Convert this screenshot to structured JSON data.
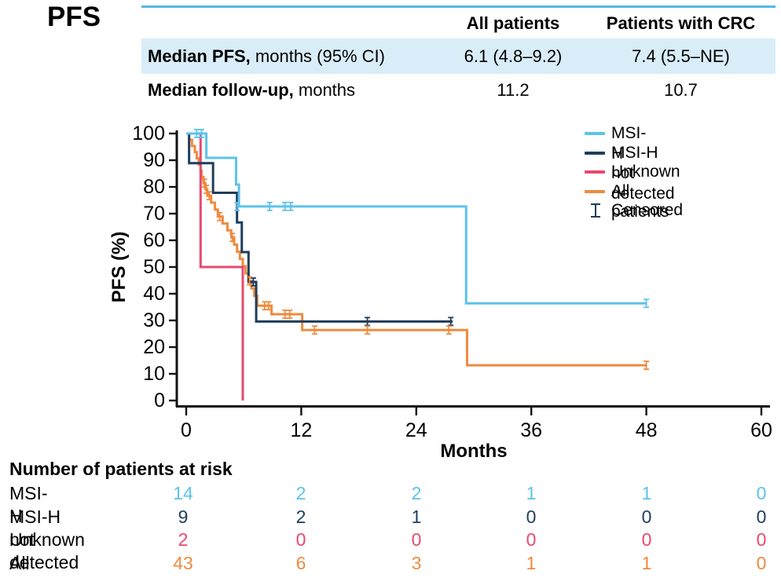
{
  "title": "PFS",
  "colors": {
    "msi_h": "#5BC3EB",
    "msi_h_not_detected": "#1F3D5C",
    "unknown": "#E64A6E",
    "all_patients": "#EE8B3F",
    "table_rule": "#55B7E3",
    "row_highlight": "#D9EDF9",
    "axis": "#111111"
  },
  "summary_table": {
    "columns": [
      "All patients",
      "Patients with CRC"
    ],
    "rows": [
      {
        "label_bold": "Median PFS,",
        "label_rest": " months (95% CI)",
        "all_patients": "6.1 (4.8–9.2)",
        "crc": "7.4 (5.5–NE)"
      },
      {
        "label_bold": "Median follow-up,",
        "label_rest": " months",
        "all_patients": "11.2",
        "crc": "10.7"
      }
    ]
  },
  "chart_data": {
    "type": "line",
    "subtype": "kaplan-meier",
    "title": "",
    "xlabel": "Months",
    "ylabel": "PFS (%)",
    "xlim": [
      0,
      60
    ],
    "ylim": [
      0,
      100
    ],
    "xticks": [
      0,
      12,
      24,
      36,
      48,
      60
    ],
    "yticks": [
      0,
      10,
      20,
      30,
      40,
      50,
      60,
      70,
      80,
      90,
      100
    ],
    "grid": false,
    "legend_position": "top-right",
    "legend_censored_label": "Censored",
    "series": [
      {
        "name": "MSI-H",
        "color": "#5BC3EB",
        "steps": [
          [
            0,
            100
          ],
          [
            2.1,
            100
          ],
          [
            2.1,
            90.9
          ],
          [
            5.2,
            90.9
          ],
          [
            5.2,
            80.9
          ],
          [
            5.5,
            80.9
          ],
          [
            5.5,
            72.7
          ],
          [
            29.2,
            72.7
          ],
          [
            29.2,
            36.4
          ],
          [
            48,
            36.4
          ]
        ],
        "censors": [
          [
            1.1,
            100
          ],
          [
            1.6,
            100
          ],
          [
            5.3,
            72.7
          ],
          [
            8.7,
            72.7
          ],
          [
            10.3,
            72.7
          ],
          [
            10.9,
            72.7
          ],
          [
            48,
            36.4
          ]
        ]
      },
      {
        "name": "MSI-H not detected",
        "color": "#1F3D5C",
        "steps": [
          [
            0,
            100
          ],
          [
            0.3,
            100
          ],
          [
            0.3,
            88.9
          ],
          [
            2.8,
            88.9
          ],
          [
            2.8,
            77.8
          ],
          [
            5.3,
            77.8
          ],
          [
            5.3,
            66.7
          ],
          [
            5.8,
            66.7
          ],
          [
            5.8,
            55.6
          ],
          [
            6.5,
            55.6
          ],
          [
            6.5,
            44.4
          ],
          [
            7.3,
            44.4
          ],
          [
            7.3,
            29.6
          ],
          [
            27.8,
            29.6
          ]
        ],
        "censors": [
          [
            7.0,
            44.4
          ],
          [
            18.9,
            29.6
          ],
          [
            27.6,
            29.6
          ]
        ]
      },
      {
        "name": "Unknown",
        "color": "#E64A6E",
        "steps": [
          [
            0,
            100
          ],
          [
            1.5,
            100
          ],
          [
            1.5,
            50
          ],
          [
            5.9,
            50
          ],
          [
            5.9,
            0
          ]
        ],
        "censors": []
      },
      {
        "name": "All patients",
        "color": "#EE8B3F",
        "steps": [
          [
            0,
            100
          ],
          [
            0.3,
            100
          ],
          [
            0.3,
            97.7
          ],
          [
            0.6,
            97.7
          ],
          [
            0.6,
            95.3
          ],
          [
            0.9,
            95.3
          ],
          [
            0.9,
            93
          ],
          [
            1.1,
            93
          ],
          [
            1.1,
            90.7
          ],
          [
            1.3,
            90.7
          ],
          [
            1.3,
            88.4
          ],
          [
            1.5,
            88.4
          ],
          [
            1.5,
            86
          ],
          [
            1.6,
            86
          ],
          [
            1.6,
            83.7
          ],
          [
            1.8,
            83.7
          ],
          [
            1.8,
            81.4
          ],
          [
            2,
            81.4
          ],
          [
            2,
            79.1
          ],
          [
            2.2,
            79.1
          ],
          [
            2.2,
            76.7
          ],
          [
            2.6,
            76.7
          ],
          [
            2.6,
            74.1
          ],
          [
            3,
            74.1
          ],
          [
            3,
            71.5
          ],
          [
            3.3,
            71.5
          ],
          [
            3.3,
            68.9
          ],
          [
            3.8,
            68.9
          ],
          [
            3.8,
            66.3
          ],
          [
            4.3,
            66.3
          ],
          [
            4.3,
            63.7
          ],
          [
            4.7,
            63.7
          ],
          [
            4.7,
            61.1
          ],
          [
            5,
            61.1
          ],
          [
            5,
            58.4
          ],
          [
            5.3,
            58.4
          ],
          [
            5.3,
            55.7
          ],
          [
            5.6,
            55.7
          ],
          [
            5.6,
            53
          ],
          [
            5.9,
            53
          ],
          [
            5.9,
            50.3
          ],
          [
            6.2,
            50.3
          ],
          [
            6.2,
            47.6
          ],
          [
            6.5,
            47.6
          ],
          [
            6.5,
            44.8
          ],
          [
            6.8,
            44.8
          ],
          [
            6.8,
            42
          ],
          [
            7.1,
            42
          ],
          [
            7.1,
            39.2
          ],
          [
            7.4,
            39.2
          ],
          [
            7.4,
            35.5
          ],
          [
            8.9,
            35.5
          ],
          [
            8.9,
            32.3
          ],
          [
            12.1,
            32.3
          ],
          [
            12.1,
            26.4
          ],
          [
            29.3,
            26.4
          ],
          [
            29.3,
            13.2
          ],
          [
            48,
            13.2
          ]
        ],
        "censors": [
          [
            1.9,
            81.4
          ],
          [
            2.1,
            79.1
          ],
          [
            2.4,
            76.7
          ],
          [
            3.5,
            68.9
          ],
          [
            4.8,
            61.1
          ],
          [
            6.6,
            44.8
          ],
          [
            8.2,
            35.5
          ],
          [
            8.6,
            35.5
          ],
          [
            10.3,
            32.3
          ],
          [
            10.8,
            32.3
          ],
          [
            13.4,
            26.4
          ],
          [
            18.9,
            26.4
          ],
          [
            27.4,
            26.4
          ],
          [
            48,
            13.2
          ]
        ]
      }
    ]
  },
  "at_risk": {
    "header": "Number of patients at risk",
    "timepoints": [
      0,
      12,
      24,
      36,
      48,
      60
    ],
    "rows": [
      {
        "label": "MSI-H",
        "color": "#5BC3EB",
        "values": [
          "14",
          "2",
          "2",
          "1",
          "1",
          "0"
        ]
      },
      {
        "label": "MSI-H not detected",
        "color": "#1F3D5C",
        "values": [
          "9",
          "2",
          "1",
          "0",
          "0",
          "0"
        ]
      },
      {
        "label": "Unknown",
        "color": "#E64A6E",
        "values": [
          "2",
          "0",
          "0",
          "0",
          "0",
          "0"
        ]
      },
      {
        "label": "All patients",
        "color": "#EE8B3F",
        "values": [
          "43",
          "6",
          "3",
          "1",
          "1",
          "0"
        ]
      }
    ]
  }
}
